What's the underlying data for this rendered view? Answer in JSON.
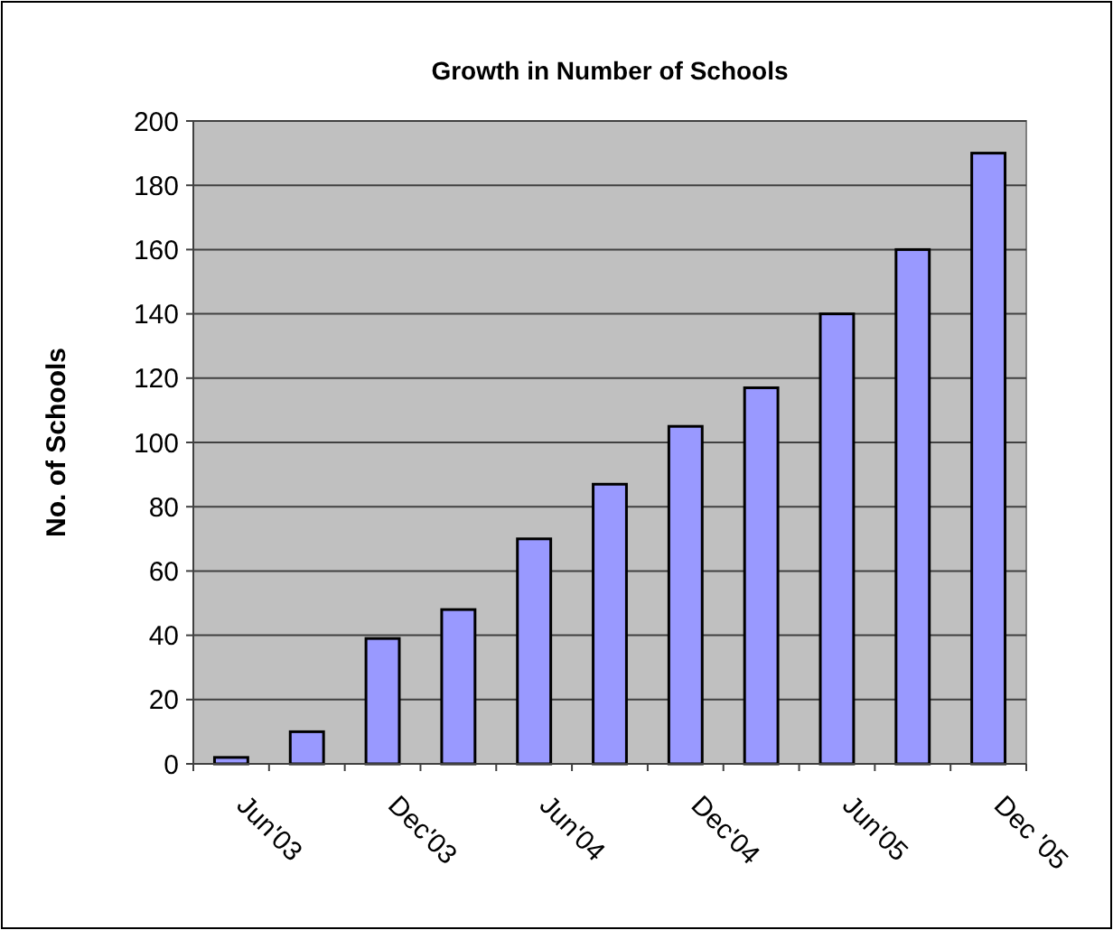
{
  "chart_data": {
    "type": "bar",
    "title": "Growth in Number of Schools",
    "ylabel": "No. of Schools",
    "categories": [
      "Jun'03",
      null,
      "Dec'03",
      null,
      "Jun'04",
      null,
      "Dec'04",
      null,
      "Jun'05",
      null,
      "Dec '05"
    ],
    "values": [
      2,
      10,
      39,
      48,
      70,
      87,
      105,
      117,
      140,
      160,
      190
    ],
    "color": "#9999ff",
    "ylim": [
      0,
      200
    ],
    "yticks": [
      0,
      20,
      40,
      60,
      80,
      100,
      120,
      140,
      160,
      180,
      200
    ],
    "grid": "y"
  }
}
